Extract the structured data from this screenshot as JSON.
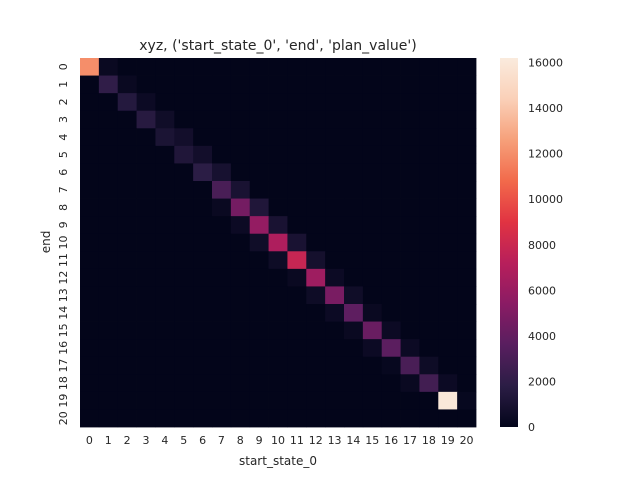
{
  "chart_data": {
    "type": "heatmap",
    "title": "xyz, ('start_state_0', 'end', 'plan_value')",
    "xlabel": "start_state_0",
    "ylabel": "end",
    "x_categories": [
      "0",
      "1",
      "2",
      "3",
      "4",
      "5",
      "6",
      "7",
      "8",
      "9",
      "10",
      "11",
      "12",
      "13",
      "14",
      "15",
      "16",
      "17",
      "18",
      "19",
      "20"
    ],
    "y_categories": [
      "0",
      "1",
      "2",
      "3",
      "4",
      "5",
      "6",
      "7",
      "8",
      "9",
      "10",
      "11",
      "12",
      "13",
      "14",
      "15",
      "16",
      "17",
      "18",
      "19",
      "20"
    ],
    "values": [
      [
        12000,
        300,
        0,
        0,
        0,
        0,
        0,
        0,
        0,
        0,
        0,
        0,
        0,
        0,
        0,
        0,
        0,
        0,
        0,
        0,
        0
      ],
      [
        0,
        2000,
        300,
        0,
        0,
        0,
        0,
        0,
        0,
        0,
        0,
        0,
        0,
        0,
        0,
        0,
        0,
        0,
        0,
        0,
        0
      ],
      [
        0,
        0,
        1500,
        400,
        0,
        0,
        0,
        0,
        0,
        0,
        0,
        0,
        0,
        0,
        0,
        0,
        0,
        0,
        0,
        0,
        0
      ],
      [
        0,
        0,
        0,
        1600,
        600,
        0,
        0,
        0,
        0,
        0,
        0,
        0,
        0,
        0,
        0,
        0,
        0,
        0,
        0,
        0,
        0
      ],
      [
        0,
        0,
        0,
        0,
        1100,
        700,
        0,
        0,
        0,
        0,
        0,
        0,
        0,
        0,
        0,
        0,
        0,
        0,
        0,
        0,
        0
      ],
      [
        0,
        0,
        0,
        0,
        0,
        1300,
        700,
        0,
        0,
        0,
        0,
        0,
        0,
        0,
        0,
        0,
        0,
        0,
        0,
        0,
        0
      ],
      [
        0,
        0,
        0,
        0,
        0,
        0,
        1800,
        900,
        0,
        0,
        0,
        0,
        0,
        0,
        0,
        0,
        0,
        0,
        0,
        0,
        0
      ],
      [
        0,
        0,
        0,
        0,
        0,
        0,
        0,
        3000,
        1000,
        0,
        0,
        0,
        0,
        0,
        0,
        0,
        0,
        0,
        0,
        0,
        0
      ],
      [
        0,
        0,
        0,
        0,
        0,
        0,
        0,
        300,
        4600,
        1300,
        0,
        0,
        0,
        0,
        0,
        0,
        0,
        0,
        0,
        0,
        0
      ],
      [
        0,
        0,
        0,
        0,
        0,
        0,
        0,
        0,
        400,
        5800,
        1000,
        0,
        0,
        0,
        0,
        0,
        0,
        0,
        0,
        0,
        0
      ],
      [
        0,
        0,
        0,
        0,
        0,
        0,
        0,
        0,
        0,
        600,
        6800,
        1000,
        0,
        0,
        0,
        0,
        0,
        0,
        0,
        0,
        0
      ],
      [
        0,
        0,
        0,
        0,
        0,
        0,
        0,
        0,
        0,
        0,
        500,
        7800,
        800,
        0,
        0,
        0,
        0,
        0,
        0,
        0,
        0
      ],
      [
        0,
        0,
        0,
        0,
        0,
        0,
        0,
        0,
        0,
        0,
        0,
        300,
        6200,
        400,
        0,
        0,
        0,
        0,
        0,
        0,
        0
      ],
      [
        0,
        0,
        0,
        0,
        0,
        0,
        0,
        0,
        0,
        0,
        0,
        0,
        500,
        4800,
        600,
        0,
        0,
        0,
        0,
        0,
        0
      ],
      [
        0,
        0,
        0,
        0,
        0,
        0,
        0,
        0,
        0,
        0,
        0,
        0,
        0,
        400,
        3800,
        300,
        0,
        0,
        0,
        0,
        0
      ],
      [
        0,
        0,
        0,
        0,
        0,
        0,
        0,
        0,
        0,
        0,
        0,
        0,
        0,
        0,
        300,
        4200,
        400,
        0,
        0,
        0,
        0
      ],
      [
        0,
        0,
        0,
        0,
        0,
        0,
        0,
        0,
        0,
        0,
        0,
        0,
        0,
        0,
        0,
        400,
        3700,
        400,
        0,
        0,
        0
      ],
      [
        0,
        0,
        0,
        0,
        0,
        0,
        0,
        0,
        0,
        0,
        0,
        0,
        0,
        0,
        0,
        0,
        200,
        3000,
        500,
        0,
        0
      ],
      [
        0,
        0,
        0,
        0,
        0,
        0,
        0,
        0,
        0,
        0,
        0,
        0,
        0,
        0,
        0,
        0,
        0,
        300,
        2700,
        400,
        0
      ],
      [
        0,
        0,
        0,
        0,
        0,
        0,
        0,
        0,
        0,
        0,
        0,
        0,
        0,
        0,
        0,
        0,
        0,
        0,
        0,
        16000,
        200
      ],
      [
        0,
        0,
        0,
        0,
        0,
        0,
        0,
        0,
        0,
        0,
        0,
        0,
        0,
        0,
        0,
        0,
        0,
        0,
        0,
        0,
        0
      ]
    ],
    "colorbar": {
      "min": 0,
      "max": 16200,
      "ticks": [
        0,
        2000,
        4000,
        6000,
        8000,
        10000,
        12000,
        14000,
        16000
      ]
    },
    "colormap": "rocket",
    "colormap_stops": [
      "#03051a",
      "#2b1d45",
      "#581e5f",
      "#8a1b64",
      "#b81f5b",
      "#e13342",
      "#f26a4b",
      "#f6a07a",
      "#fad0b8",
      "#faebdd"
    ],
    "grid": false,
    "legend": "colorbar-right"
  }
}
